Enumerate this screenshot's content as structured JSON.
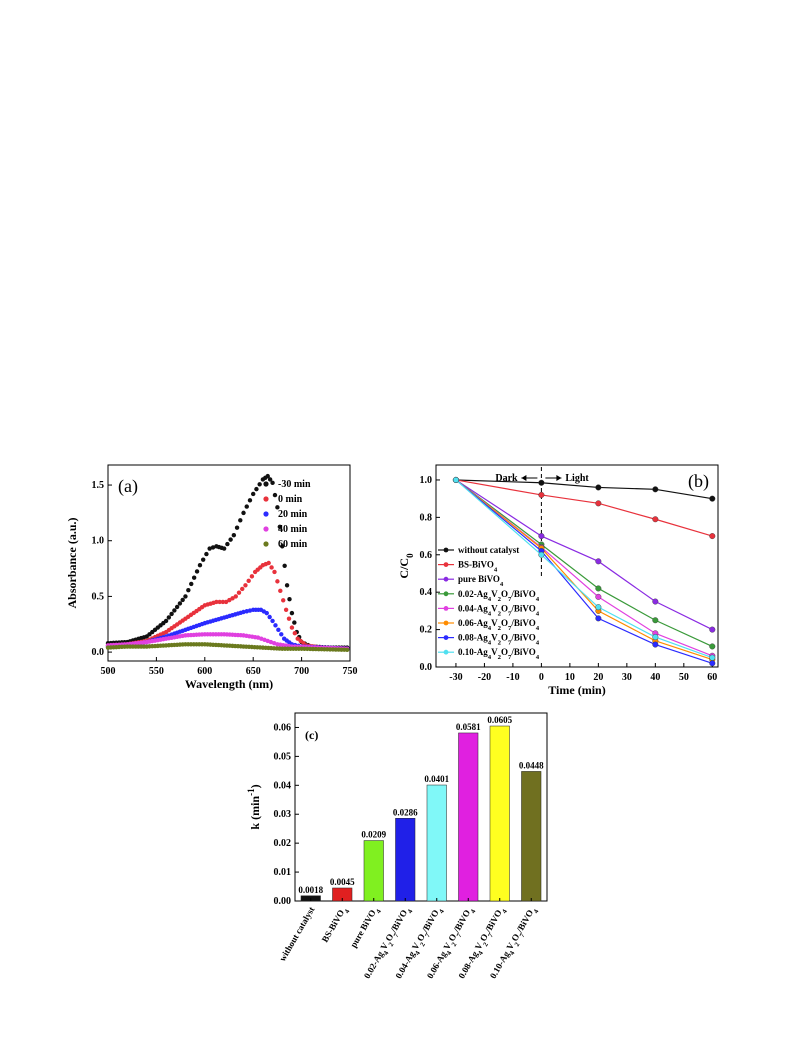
{
  "chart_data": [
    {
      "type": "scatter",
      "panel_label": "(a)",
      "xlabel": "Wavelength (nm)",
      "ylabel": "Absorbance (a.u.)",
      "xlim": [
        500,
        750
      ],
      "ylim": [
        -0.08,
        1.68
      ],
      "xticks": [
        500,
        550,
        600,
        650,
        700,
        750
      ],
      "yticks": [
        0.0,
        0.5,
        1.0,
        1.5
      ],
      "legend_position": "top-right",
      "series": [
        {
          "name": "-30 min",
          "color": "#111111",
          "points": [
            [
              500,
              0.08
            ],
            [
              520,
              0.09
            ],
            [
              540,
              0.14
            ],
            [
              560,
              0.28
            ],
            [
              580,
              0.5
            ],
            [
              595,
              0.78
            ],
            [
              605,
              0.93
            ],
            [
              612,
              0.95
            ],
            [
              620,
              0.93
            ],
            [
              630,
              1.05
            ],
            [
              640,
              1.25
            ],
            [
              650,
              1.42
            ],
            [
              660,
              1.55
            ],
            [
              665,
              1.58
            ],
            [
              670,
              1.52
            ],
            [
              675,
              1.3
            ],
            [
              680,
              0.95
            ],
            [
              685,
              0.6
            ],
            [
              690,
              0.35
            ],
            [
              695,
              0.18
            ],
            [
              700,
              0.09
            ],
            [
              710,
              0.05
            ],
            [
              730,
              0.04
            ],
            [
              750,
              0.04
            ]
          ]
        },
        {
          "name": "0 min",
          "color": "#e8323c",
          "points": [
            [
              500,
              0.06
            ],
            [
              520,
              0.07
            ],
            [
              540,
              0.1
            ],
            [
              560,
              0.18
            ],
            [
              580,
              0.3
            ],
            [
              600,
              0.42
            ],
            [
              612,
              0.45
            ],
            [
              622,
              0.45
            ],
            [
              632,
              0.5
            ],
            [
              642,
              0.6
            ],
            [
              652,
              0.72
            ],
            [
              660,
              0.78
            ],
            [
              666,
              0.8
            ],
            [
              672,
              0.72
            ],
            [
              678,
              0.55
            ],
            [
              684,
              0.38
            ],
            [
              690,
              0.22
            ],
            [
              696,
              0.12
            ],
            [
              705,
              0.06
            ],
            [
              720,
              0.04
            ],
            [
              750,
              0.03
            ]
          ]
        },
        {
          "name": "20 min",
          "color": "#2b2bff",
          "points": [
            [
              500,
              0.05
            ],
            [
              520,
              0.06
            ],
            [
              540,
              0.09
            ],
            [
              560,
              0.14
            ],
            [
              580,
              0.2
            ],
            [
              600,
              0.26
            ],
            [
              620,
              0.31
            ],
            [
              640,
              0.36
            ],
            [
              650,
              0.38
            ],
            [
              658,
              0.38
            ],
            [
              664,
              0.35
            ],
            [
              670,
              0.28
            ],
            [
              676,
              0.2
            ],
            [
              682,
              0.12
            ],
            [
              690,
              0.07
            ],
            [
              700,
              0.05
            ],
            [
              750,
              0.03
            ]
          ]
        },
        {
          "name": "40 min",
          "color": "#e040e0",
          "points": [
            [
              500,
              0.06
            ],
            [
              520,
              0.07
            ],
            [
              540,
              0.09
            ],
            [
              560,
              0.12
            ],
            [
              580,
              0.15
            ],
            [
              600,
              0.16
            ],
            [
              620,
              0.16
            ],
            [
              640,
              0.15
            ],
            [
              655,
              0.13
            ],
            [
              665,
              0.1
            ],
            [
              675,
              0.07
            ],
            [
              690,
              0.05
            ],
            [
              720,
              0.04
            ],
            [
              750,
              0.03
            ]
          ]
        },
        {
          "name": "60 min",
          "color": "#6b7a1e",
          "points": [
            [
              500,
              0.04
            ],
            [
              520,
              0.05
            ],
            [
              540,
              0.05
            ],
            [
              560,
              0.06
            ],
            [
              580,
              0.07
            ],
            [
              600,
              0.07
            ],
            [
              620,
              0.06
            ],
            [
              640,
              0.05
            ],
            [
              660,
              0.04
            ],
            [
              680,
              0.03
            ],
            [
              700,
              0.03
            ],
            [
              750,
              0.02
            ]
          ]
        }
      ]
    },
    {
      "type": "line",
      "panel_label": "(b)",
      "xlabel": "Time (min)",
      "ylabel": "C/C",
      "ylabel_sub": "0",
      "xlim": [
        -37,
        62
      ],
      "ylim": [
        0,
        1.08
      ],
      "xticks": [
        -30,
        -20,
        -10,
        0,
        10,
        20,
        30,
        40,
        50,
        60
      ],
      "yticks": [
        0.0,
        0.2,
        0.4,
        0.6,
        0.8,
        1.0
      ],
      "annotations": {
        "dark": "Dark",
        "light": "Light",
        "divider_x": 0
      },
      "legend_position": "lower-left",
      "x": [
        -30,
        0,
        20,
        40,
        60
      ],
      "series": [
        {
          "name": "without catalyst",
          "color": "#111111",
          "values": [
            1.0,
            0.985,
            0.96,
            0.95,
            0.9
          ]
        },
        {
          "name": "BS-BiVO",
          "sub": "4",
          "color": "#e8323c",
          "values": [
            1.0,
            0.92,
            0.875,
            0.79,
            0.7
          ]
        },
        {
          "name": "pure BiVO",
          "sub": "4",
          "color": "#8a2be2",
          "values": [
            1.0,
            0.7,
            0.565,
            0.35,
            0.2
          ]
        },
        {
          "name": "0.02-Ag4V2O7/BiVO4",
          "label_parts": [
            "0.02-Ag",
            "4",
            "V",
            "2",
            "O",
            "7",
            "/BiVO",
            "4"
          ],
          "color": "#3a9a3a",
          "values": [
            1.0,
            0.655,
            0.42,
            0.25,
            0.11
          ]
        },
        {
          "name": "0.04-Ag4V2O7/BiVO4",
          "label_parts": [
            "0.04-Ag",
            "4",
            "V",
            "2",
            "O",
            "7",
            "/BiVO",
            "4"
          ],
          "color": "#e040e0",
          "values": [
            1.0,
            0.64,
            0.375,
            0.18,
            0.06
          ]
        },
        {
          "name": "0.06-Ag4V2O7/BiVO4",
          "label_parts": [
            "0.06-Ag",
            "4",
            "V",
            "2",
            "O",
            "7",
            "/BiVO",
            "4"
          ],
          "color": "#ff8c00",
          "values": [
            1.0,
            0.635,
            0.3,
            0.14,
            0.04
          ]
        },
        {
          "name": "0.08-Ag4V2O7/BiVO4",
          "label_parts": [
            "0.08-Ag",
            "4",
            "V",
            "2",
            "O",
            "7",
            "/BiVO",
            "4"
          ],
          "color": "#2b2bff",
          "values": [
            1.0,
            0.62,
            0.26,
            0.12,
            0.02
          ]
        },
        {
          "name": "0.10-Ag4V2O7/BiVO4",
          "label_parts": [
            "0.10-Ag",
            "4",
            "V",
            "2",
            "O",
            "7",
            "/BiVO",
            "4"
          ],
          "color": "#50e0f0",
          "values": [
            1.0,
            0.6,
            0.32,
            0.16,
            0.05
          ]
        }
      ]
    },
    {
      "type": "bar",
      "panel_label": "(c)",
      "ylabel": "k (min",
      "ylabel_sup": "-1",
      "ylabel_end": ")",
      "ylim": [
        0,
        0.065
      ],
      "yticks": [
        0.0,
        0.01,
        0.02,
        0.03,
        0.04,
        0.05,
        0.06
      ],
      "categories": [
        "without catalyst",
        "BS-BiVO4",
        "pure BiVO4",
        "0.02-Ag4V2O7/BiVO4",
        "0.04-Ag4V2O7/BiVO4",
        "0.06-Ag4V2O7/BiVO4",
        "0.08-Ag4V2O7/BiVO4",
        "0.10-Ag4V2O7/BiVO4"
      ],
      "values": [
        0.0018,
        0.0045,
        0.0209,
        0.0286,
        0.0401,
        0.0581,
        0.0605,
        0.0448
      ],
      "value_labels": [
        "0.0018",
        "0.0045",
        "0.0209",
        "0.0286",
        "0.0401",
        "0.0581",
        "0.0605",
        "0.0448"
      ],
      "colors": [
        "#111111",
        "#e02020",
        "#80f020",
        "#2020e8",
        "#80f8f8",
        "#e020e0",
        "#ffff20",
        "#707020"
      ]
    }
  ]
}
